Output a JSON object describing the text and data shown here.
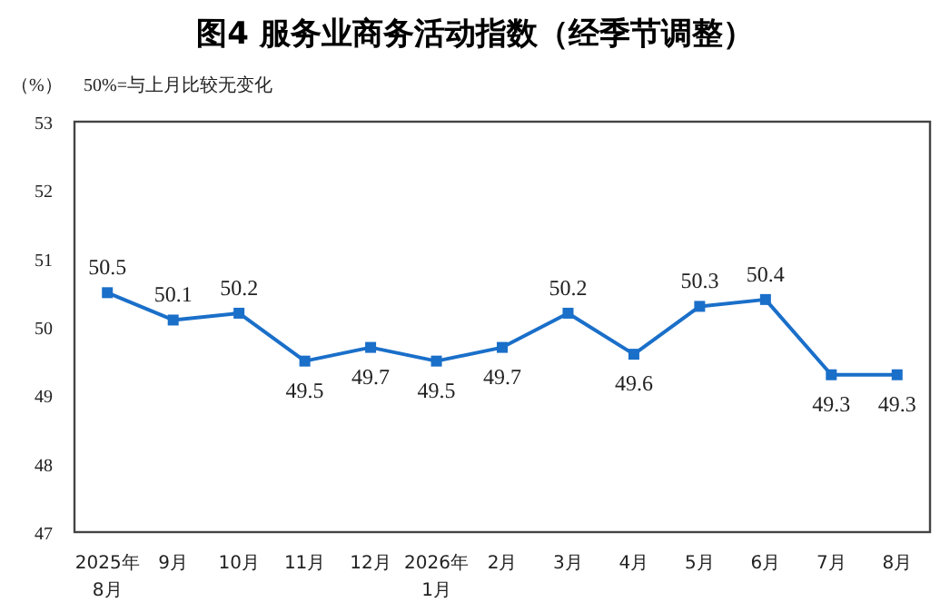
{
  "chart_data": {
    "type": "line",
    "title": "图4  服务业商务活动指数（经季节调整）",
    "ylabel": "（%）",
    "annotations": [
      "50%=与上月比较无变化"
    ],
    "categories": [
      "2025年\n8月",
      "9月",
      "10月",
      "11月",
      "12月",
      "2026年\n1月",
      "2月",
      "3月",
      "4月",
      "5月",
      "6月",
      "7月",
      "8月"
    ],
    "series": [
      {
        "color": "#1a6fc9",
        "values": [
          50.5,
          50.1,
          50.2,
          49.5,
          49.7,
          49.5,
          49.7,
          50.2,
          49.6,
          50.3,
          50.4,
          49.3,
          49.3
        ]
      }
    ],
    "ylim": [
      47,
      53
    ],
    "yticks": [
      47,
      48,
      49,
      50,
      51,
      52,
      53
    ],
    "marker": "square",
    "line_style": "solid",
    "data_labels": true
  }
}
